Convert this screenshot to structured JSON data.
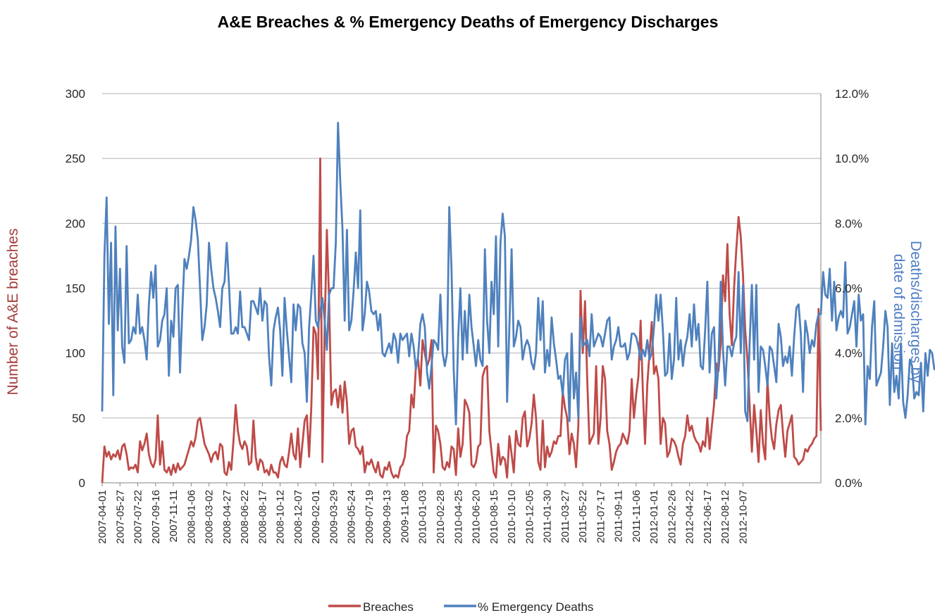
{
  "chart_data": {
    "type": "line",
    "title": "A&E Breaches & %  Emergency Deaths of Emergency Discharges",
    "ylabel": "Number of A&E breaches",
    "y2label_lines": [
      "Deaths/discharges by",
      "date of admission"
    ],
    "ylim": [
      0,
      300
    ],
    "y2lim": [
      0,
      12
    ],
    "yticks": [
      "0",
      "50",
      "100",
      "150",
      "200",
      "250",
      "300"
    ],
    "y2ticks": [
      "0.0%",
      "2.0%",
      "4.0%",
      "6.0%",
      "8.0%",
      "10.0%",
      "12.0%"
    ],
    "grid": true,
    "legend_position": "bottom",
    "x_tick_labels": [
      "2007-04-01",
      "2007-05-27",
      "2007-07-22",
      "2007-09-16",
      "2007-11-11",
      "2008-01-06",
      "2008-03-02",
      "2008-04-27",
      "2008-06-22",
      "2008-08-17",
      "2008-10-12",
      "2008-12-07",
      "2009-02-01",
      "2009-03-29",
      "2009-05-24",
      "2009-07-19",
      "2009-09-13",
      "2009-11-08",
      "2010-01-03",
      "2010-02-28",
      "2010-04-25",
      "2010-06-20",
      "2010-08-15",
      "2010-10-10",
      "2010-12-05",
      "2011-01-30",
      "2011-03-27",
      "2011-05-22",
      "2011-07-17",
      "2011-09-11",
      "2011-11-06",
      "2012-01-01",
      "2012-02-26",
      "2012-04-22",
      "2012-06-17",
      "2012-08-12",
      "2012-10-07"
    ],
    "x_tick_step_days": 56,
    "series": [
      {
        "name": "Breaches",
        "axis": "left",
        "color": "#be4b48",
        "values": [
          0,
          28,
          20,
          24,
          18,
          22,
          20,
          25,
          18,
          28,
          30,
          22,
          10,
          12,
          11,
          14,
          8,
          32,
          25,
          30,
          38,
          22,
          15,
          12,
          18,
          52,
          14,
          32,
          10,
          8,
          12,
          6,
          14,
          8,
          15,
          10,
          12,
          14,
          20,
          26,
          32,
          28,
          35,
          48,
          50,
          40,
          30,
          26,
          22,
          16,
          22,
          24,
          18,
          30,
          28,
          8,
          6,
          16,
          10,
          32,
          60,
          40,
          30,
          26,
          32,
          28,
          14,
          16,
          48,
          20,
          10,
          18,
          16,
          8,
          10,
          6,
          14,
          8,
          8,
          4,
          16,
          20,
          14,
          12,
          24,
          38,
          22,
          18,
          42,
          12,
          30,
          48,
          52,
          20,
          58,
          120,
          115,
          80,
          250,
          16,
          120,
          195,
          140,
          60,
          70,
          72,
          58,
          75,
          54,
          78,
          62,
          30,
          40,
          42,
          28,
          26,
          22,
          28,
          8,
          16,
          14,
          18,
          12,
          8,
          16,
          6,
          4,
          12,
          10,
          16,
          8,
          4,
          6,
          4,
          12,
          14,
          20,
          36,
          40,
          68,
          58,
          90,
          95,
          75,
          110,
          100,
          90,
          95,
          110,
          8,
          44,
          40,
          30,
          12,
          10,
          16,
          12,
          28,
          26,
          6,
          42,
          20,
          30,
          64,
          60,
          54,
          14,
          12,
          16,
          28,
          30,
          82,
          88,
          90,
          40,
          24,
          8,
          4,
          30,
          14,
          20,
          18,
          4,
          36,
          22,
          8,
          40,
          30,
          28,
          50,
          55,
          28,
          34,
          46,
          68,
          50,
          16,
          10,
          48,
          12,
          28,
          20,
          24,
          32,
          30,
          36,
          36,
          70,
          58,
          50,
          22,
          38,
          30,
          12,
          44,
          148,
          100,
          140,
          80,
          30,
          34,
          38,
          90,
          30,
          50,
          90,
          80,
          40,
          30,
          10,
          16,
          24,
          28,
          30,
          38,
          34,
          30,
          40,
          80,
          50,
          68,
          82,
          125,
          70,
          30,
          76,
          100,
          124,
          84,
          90,
          80,
          30,
          50,
          46,
          20,
          24,
          34,
          32,
          28,
          20,
          14,
          30,
          36,
          52,
          40,
          44,
          36,
          32,
          30,
          24,
          32,
          28,
          50,
          26,
          44,
          60,
          92,
          86,
          108,
          160,
          140,
          184,
          130,
          106,
          150,
          180,
          205,
          190,
          160,
          118,
          95,
          60,
          24,
          60,
          40,
          16,
          56,
          30,
          18,
          80,
          50,
          34,
          26,
          45,
          56,
          60,
          38,
          20,
          40,
          46,
          52,
          20,
          18,
          14,
          16,
          18,
          26,
          24,
          28,
          30,
          34,
          36,
          134,
          40
        ]
      },
      {
        "name": "% Emergency Deaths",
        "axis": "right",
        "color": "#4f81bd",
        "values": [
          2.2,
          7.0,
          8.8,
          4.9,
          7.4,
          2.7,
          7.9,
          4.7,
          6.6,
          4.2,
          3.7,
          7.3,
          4.3,
          4.4,
          4.8,
          4.6,
          5.8,
          4.6,
          4.8,
          4.4,
          3.8,
          5.5,
          6.5,
          5.7,
          6.7,
          4.2,
          4.4,
          5.0,
          5.2,
          6.0,
          3.3,
          5.0,
          4.5,
          6.0,
          6.1,
          3.4,
          5.3,
          6.9,
          6.6,
          7.0,
          7.5,
          8.5,
          8.1,
          7.5,
          6.0,
          4.4,
          4.8,
          5.5,
          7.4,
          6.6,
          6.0,
          5.7,
          5.3,
          4.8,
          6.0,
          6.2,
          7.4,
          6.1,
          4.6,
          4.6,
          4.8,
          4.6,
          5.9,
          4.8,
          4.8,
          4.6,
          4.4,
          5.6,
          5.6,
          5.4,
          5.2,
          6.0,
          5.0,
          5.6,
          5.5,
          3.9,
          3.0,
          4.7,
          5.1,
          5.4,
          4.7,
          3.3,
          5.7,
          4.7,
          3.9,
          3.1,
          5.5,
          4.7,
          5.5,
          5.4,
          4.3,
          4.0,
          2.5,
          4.8,
          5.8,
          7.0,
          5.0,
          4.8,
          5.3,
          5.7,
          5.0,
          4.1,
          5.8,
          6.0,
          6.0,
          7.4,
          11.1,
          9.3,
          7.8,
          5.0,
          7.8,
          4.7,
          5.0,
          5.9,
          7.1,
          6.0,
          8.4,
          4.7,
          5.2,
          6.2,
          5.9,
          5.3,
          5.2,
          5.3,
          4.7,
          5.2,
          4.0,
          3.9,
          4.1,
          4.3,
          4.0,
          4.6,
          4.4,
          3.7,
          4.6,
          4.4,
          4.5,
          4.6,
          3.9,
          4.6,
          4.2,
          3.5,
          3.9,
          4.9,
          5.2,
          4.8,
          3.4,
          2.9,
          3.6,
          4.4,
          4.3,
          4.1,
          5.8,
          4.0,
          3.6,
          4.0,
          8.5,
          6.6,
          3.5,
          1.8,
          4.5,
          6.0,
          3.8,
          5.3,
          4.0,
          5.8,
          4.8,
          4.2,
          3.6,
          4.4,
          3.8,
          3.6,
          7.2,
          5.0,
          4.0,
          6.2,
          5.2,
          7.6,
          4.2,
          7.4,
          8.3,
          7.6,
          2.5,
          4.8,
          7.2,
          4.2,
          4.5,
          5.0,
          4.8,
          3.8,
          4.2,
          4.4,
          4.2,
          3.7,
          3.5,
          4.0,
          5.7,
          4.4,
          5.6,
          3.4,
          4.1,
          3.6,
          5.1,
          4.3,
          3.8,
          3.2,
          3.3,
          2.7,
          3.8,
          4.0,
          1.9,
          4.6,
          2.6,
          3.4,
          2.0,
          5.1,
          4.2,
          4.3,
          4.4,
          3.9,
          5.2,
          4.2,
          4.4,
          4.6,
          4.5,
          4.2,
          4.6,
          5.0,
          5.1,
          3.8,
          4.2,
          4.4,
          4.8,
          4.2,
          4.2,
          4.3,
          3.8,
          4.0,
          4.6,
          4.6,
          4.5,
          4.2,
          3.8,
          4.1,
          3.9,
          4.4,
          3.8,
          4.0,
          4.8,
          5.8,
          5.0,
          5.8,
          4.7,
          3.3,
          3.4,
          4.6,
          3.2,
          3.8,
          5.7,
          3.8,
          4.4,
          3.6,
          4.2,
          4.5,
          5.2,
          4.2,
          5.5,
          4.4,
          4.9,
          3.6,
          3.5,
          4.7,
          6.2,
          3.4,
          4.6,
          4.8,
          2.6,
          3.7,
          6.2,
          4.1,
          3.0,
          4.2,
          4.2,
          3.9,
          4.3,
          4.5,
          6.5,
          4.0,
          6.1,
          2.2,
          1.9,
          4.3,
          6.1,
          3.8,
          6.1,
          2.8,
          4.2,
          4.1,
          3.6,
          3.0,
          4.2,
          4.1,
          3.6,
          3.1,
          4.9,
          4.5,
          3.6,
          3.9,
          3.7,
          4.2,
          3.3,
          4.5,
          5.4,
          5.5,
          4.6,
          2.8,
          5.0,
          4.6,
          4.0,
          4.4,
          4.2,
          4.9,
          5.2,
          5.2,
          6.5,
          5.8,
          5.7,
          6.6,
          5.0,
          6.2,
          4.7,
          5.1,
          5.3,
          5.1,
          6.8,
          4.6,
          4.8,
          5.2,
          5.6,
          4.2,
          5.8,
          5.0,
          5.2,
          1.8,
          3.6,
          3.2,
          4.8,
          5.6,
          3.0,
          3.2,
          3.4,
          4.2,
          5.3,
          4.8,
          2.4,
          4.3,
          2.8,
          3.3,
          2.6,
          4.3,
          2.5,
          2.0,
          2.7,
          3.8,
          3.6,
          2.6,
          2.8,
          2.7,
          3.7,
          2.2,
          4.0,
          3.3,
          4.1,
          4.0,
          3.5,
          3.6,
          2.2,
          3.2,
          3.6,
          3.9,
          4.0,
          3.3,
          2.0,
          4.1,
          3.8,
          4.0,
          3.2,
          3.7,
          2.5,
          3.4,
          4.0,
          3.4,
          1.9,
          2.0,
          2.7
        ]
      }
    ]
  }
}
